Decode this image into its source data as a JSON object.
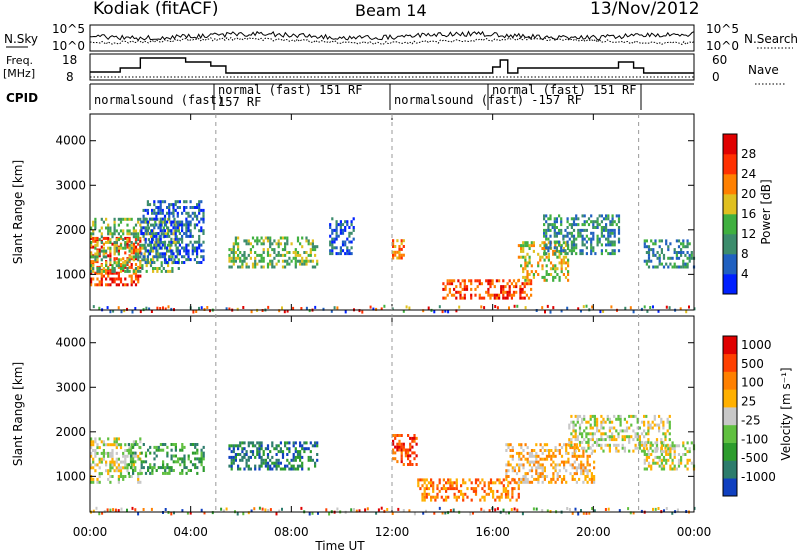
{
  "header": {
    "station": "Kodiak (fitACF)",
    "beam": "Beam 14",
    "date": "13/Nov/2012"
  },
  "nsky_panel": {
    "left_label": "N.Sky",
    "left_ticks": [
      "10^5",
      "10^0"
    ],
    "right_label": "N.Search",
    "right_ticks": [
      "10^5",
      "10^0"
    ]
  },
  "freq_panel": {
    "left_label_1": "Freq.",
    "left_label_2": "[MHz]",
    "left_ticks": [
      "18",
      "8"
    ],
    "right_label": "Nave",
    "right_ticks": [
      "60",
      "0"
    ]
  },
  "cpid_panel": {
    "label": "CPID",
    "segments": [
      {
        "line1": "normalsound (fast)",
        "line2": ""
      },
      {
        "line1": "normal (fast) 151 RF",
        "line2": "157 RF"
      },
      {
        "line1": "normalsound (fast) -157 RF",
        "line2": ""
      },
      {
        "line1": "normal (fast) 151 RF",
        "line2": ""
      }
    ]
  },
  "chart_data": [
    {
      "type": "heatmap",
      "name": "power",
      "ylabel": "Slant Range [km]",
      "yticks": [
        "1000",
        "2000",
        "3000",
        "4000"
      ],
      "ylim": [
        200,
        4600
      ],
      "xlim": [
        0,
        24
      ],
      "colorbar": {
        "label": "Power [dB]",
        "ticks": [
          "4",
          "8",
          "12",
          "16",
          "20",
          "24",
          "28"
        ],
        "colors": [
          "#0020ff",
          "#2060c0",
          "#3c8c6c",
          "#40b040",
          "#e0c020",
          "#ff8000",
          "#ff3000",
          "#e00000"
        ]
      },
      "regions": [
        {
          "t0": 0.0,
          "t1": 2.0,
          "r0": 800,
          "r1": 1900,
          "level": 6
        },
        {
          "t0": 0.0,
          "t1": 3.5,
          "r0": 1100,
          "r1": 2300,
          "level": 3
        },
        {
          "t0": 2.0,
          "t1": 4.5,
          "r0": 1300,
          "r1": 2700,
          "level": 1
        },
        {
          "t0": 5.5,
          "t1": 9.0,
          "r0": 1200,
          "r1": 1900,
          "level": 3
        },
        {
          "t0": 9.5,
          "t1": 10.5,
          "r0": 1500,
          "r1": 2300,
          "level": 1
        },
        {
          "t0": 12.0,
          "t1": 12.5,
          "r0": 1400,
          "r1": 1800,
          "level": 5
        },
        {
          "t0": 14.0,
          "t1": 17.5,
          "r0": 500,
          "r1": 900,
          "level": 6
        },
        {
          "t0": 17.0,
          "t1": 19.0,
          "r0": 900,
          "r1": 1800,
          "level": 4
        },
        {
          "t0": 18.0,
          "t1": 21.0,
          "r0": 1500,
          "r1": 2400,
          "level": 2
        },
        {
          "t0": 22.0,
          "t1": 24.0,
          "r0": 1200,
          "r1": 1800,
          "level": 2
        }
      ]
    },
    {
      "type": "heatmap",
      "name": "velocity",
      "ylabel": "Slant Range [km]",
      "yticks": [
        "1000",
        "2000",
        "3000",
        "4000"
      ],
      "ylim": [
        200,
        4600
      ],
      "xlim": [
        0,
        24
      ],
      "xlabel": "Time UT",
      "xticks": [
        "00:00",
        "04:00",
        "08:00",
        "12:00",
        "16:00",
        "20:00",
        "00:00"
      ],
      "colorbar": {
        "label": "Velocity [m s⁻¹]",
        "ticks": [
          "1000",
          "500",
          "100",
          "25",
          "-25",
          "-100",
          "-500",
          "-1000"
        ],
        "colors": [
          "#1040c0",
          "#2c7c6c",
          "#2c9c2c",
          "#60c040",
          "#c8c8c8",
          "#ffb000",
          "#ff8000",
          "#ff4000",
          "#e00000"
        ]
      },
      "regions": [
        {
          "t0": 0.0,
          "t1": 2.0,
          "r0": 900,
          "r1": 1900,
          "level": 4
        },
        {
          "t0": 1.5,
          "t1": 4.5,
          "r0": 1100,
          "r1": 1800,
          "level": 2
        },
        {
          "t0": 5.5,
          "t1": 9.0,
          "r0": 1200,
          "r1": 1800,
          "level": 1
        },
        {
          "t0": 12.0,
          "t1": 13.0,
          "r0": 1300,
          "r1": 2000,
          "level": 7
        },
        {
          "t0": 13.0,
          "t1": 17.0,
          "r0": 500,
          "r1": 1000,
          "level": 6
        },
        {
          "t0": 16.5,
          "t1": 20.0,
          "r0": 900,
          "r1": 1800,
          "level": 5
        },
        {
          "t0": 19.0,
          "t1": 23.0,
          "r0": 1600,
          "r1": 2400,
          "level": 4
        },
        {
          "t0": 22.0,
          "t1": 24.0,
          "r0": 1200,
          "r1": 1800,
          "level": 4
        }
      ]
    }
  ]
}
